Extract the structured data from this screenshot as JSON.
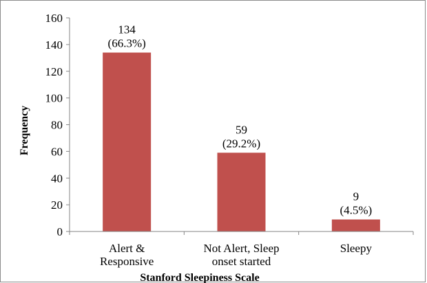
{
  "chart_data": {
    "type": "bar",
    "categories": [
      [
        "Alert &",
        "Responsive"
      ],
      [
        "Not Alert, Sleep",
        "onset started"
      ],
      [
        "Sleepy"
      ]
    ],
    "values": [
      134,
      59,
      9
    ],
    "data_labels": [
      [
        "134",
        "(66.3%)"
      ],
      [
        "59",
        "(29.2%)"
      ],
      [
        "9",
        "(4.5%)"
      ]
    ],
    "xlabel": "Stanford Sleepiness Scale",
    "ylabel": "Frequency",
    "ylim": [
      0,
      160
    ],
    "yticks": [
      0,
      20,
      40,
      60,
      80,
      100,
      120,
      140,
      160
    ],
    "grid": false,
    "legend": "none",
    "colors": {
      "bar": "#C0504D",
      "axis": "#868686",
      "frame": "#8a8a8a"
    }
  }
}
